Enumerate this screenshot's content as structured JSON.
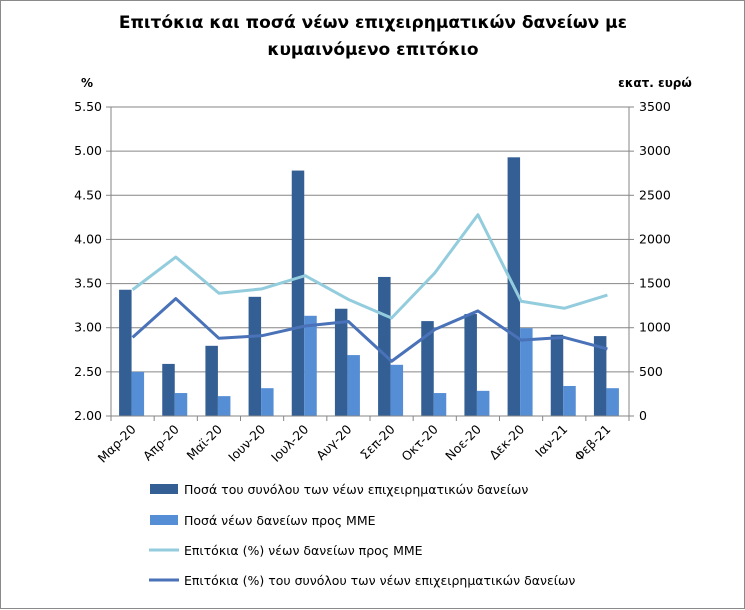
{
  "chart_data": {
    "type": "bar+line",
    "title_line1": "Επιτόκια και ποσά νέων επιχειρηματικών δανείων με",
    "title_line2": "κυμαινόμενο επιτόκιο",
    "ylabel_left": "%",
    "ylabel_right": "εκατ. ευρώ",
    "ylim_left": [
      2.0,
      5.5
    ],
    "ylim_right": [
      0,
      3500
    ],
    "yticks_left": [
      "2.00",
      "2.50",
      "3.00",
      "3.50",
      "4.00",
      "4.50",
      "5.00",
      "5.50"
    ],
    "yticks_right": [
      "0",
      "500",
      "1000",
      "1500",
      "2000",
      "2500",
      "3000",
      "3500"
    ],
    "grid": true,
    "legend_placement": "bottom",
    "categories": [
      "Μαρ-20",
      "Απρ-20",
      "Μαϊ-20",
      "Ιουν-20",
      "Ιουλ-20",
      "Αυγ-20",
      "Σεπ-20",
      "Οκτ-20",
      "Νοε-20",
      "Δεκ-20",
      "Ιαν-21",
      "Φεβ-21"
    ],
    "series": [
      {
        "name": "Ποσά του συνόλου των νέων επιχειρηματικών δανείων",
        "kind": "bar",
        "axis": "right",
        "color": "#335F94",
        "values": [
          1430,
          590,
          795,
          1350,
          2780,
          1215,
          1575,
          1075,
          1155,
          2930,
          920,
          905
        ]
      },
      {
        "name": "Ποσά νέων δανείων προς ΜΜΕ",
        "kind": "bar",
        "axis": "right",
        "color": "#558ED5",
        "values": [
          500,
          260,
          225,
          315,
          1135,
          690,
          580,
          260,
          285,
          995,
          340,
          315
        ]
      },
      {
        "name": "Επιτόκια (%) νέων δανείων προς ΜΜΕ",
        "kind": "line",
        "axis": "left",
        "color": "#93CDDD",
        "values": [
          3.43,
          3.8,
          3.39,
          3.44,
          3.59,
          3.32,
          3.11,
          3.62,
          4.28,
          3.3,
          3.22,
          3.37
        ]
      },
      {
        "name": "Επιτόκια (%) του συνόλου των νέων επιχειρηματικών δανείων",
        "kind": "line",
        "axis": "left",
        "color": "#4A72B8",
        "values": [
          2.89,
          3.33,
          2.88,
          2.91,
          3.02,
          3.07,
          2.62,
          2.98,
          3.19,
          2.86,
          2.89,
          2.76
        ]
      }
    ]
  }
}
